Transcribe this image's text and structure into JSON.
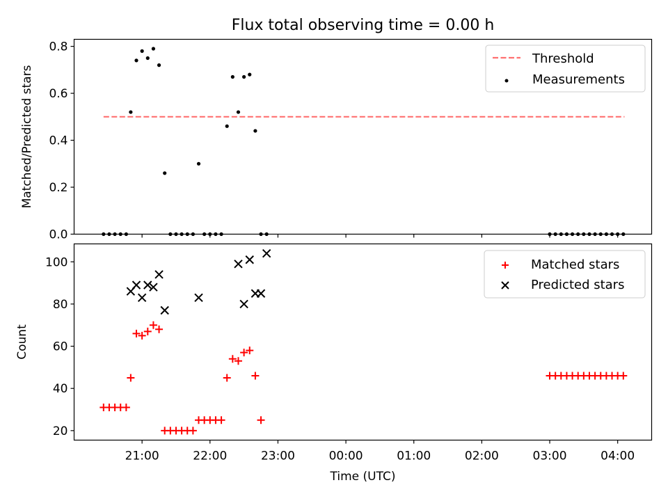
{
  "chart_data": [
    {
      "type": "scatter",
      "title": "Flux total observing time = 0.00 h",
      "xlabel": "",
      "ylabel": "Matched/Predicted stars",
      "ylim": [
        0,
        0.83
      ],
      "yticks": [
        0.0,
        0.2,
        0.4,
        0.6,
        0.8
      ],
      "yticklabels": [
        "0.0",
        "0.2",
        "0.4",
        "0.6",
        "0.8"
      ],
      "legend_position": "top-right",
      "threshold": {
        "name": "Threshold",
        "value": 0.5,
        "x_range": [
          "20:26",
          "04:06"
        ],
        "color": "#ff7070",
        "style": "dashed"
      },
      "series": [
        {
          "name": "Measurements",
          "marker": "dot",
          "color": "#000000",
          "x": [
            "20:26",
            "20:31",
            "20:36",
            "20:41",
            "20:46",
            "20:50",
            "20:55",
            "21:00",
            "21:05",
            "21:10",
            "21:15",
            "21:20",
            "21:25",
            "21:30",
            "21:35",
            "21:40",
            "21:45",
            "21:50",
            "21:55",
            "22:00",
            "22:05",
            "22:10",
            "22:15",
            "22:20",
            "22:25",
            "22:30",
            "22:35",
            "22:40",
            "22:45",
            "22:50",
            "03:00",
            "03:05",
            "03:10",
            "03:15",
            "03:20",
            "03:25",
            "03:30",
            "03:35",
            "03:40",
            "03:45",
            "03:50",
            "03:55",
            "04:00",
            "04:05"
          ],
          "y": [
            0,
            0,
            0,
            0,
            0,
            0.52,
            0.74,
            0.78,
            0.75,
            0.79,
            0.72,
            0.26,
            0,
            0,
            0,
            0,
            0,
            0.3,
            0,
            0,
            0,
            0,
            0.46,
            0.67,
            0.52,
            0.67,
            0.68,
            0.44,
            0,
            0,
            0,
            0,
            0,
            0,
            0,
            0,
            0,
            0,
            0,
            0,
            0,
            0,
            0,
            0
          ]
        }
      ]
    },
    {
      "type": "scatter",
      "title": "",
      "xlabel": "Time (UTC)",
      "ylabel": "Count",
      "ylim": [
        15.5,
        108.5
      ],
      "yticks": [
        20,
        40,
        60,
        80,
        100
      ],
      "yticklabels": [
        "20",
        "40",
        "60",
        "80",
        "100"
      ],
      "xlim": [
        "20:00",
        "04:30"
      ],
      "xticks": [
        "21:00",
        "22:00",
        "23:00",
        "00:00",
        "01:00",
        "02:00",
        "03:00",
        "04:00"
      ],
      "legend_position": "top-right",
      "series": [
        {
          "name": "Matched stars",
          "marker": "plus",
          "color": "#ff0000",
          "x": [
            "20:26",
            "20:31",
            "20:36",
            "20:41",
            "20:46",
            "20:50",
            "20:55",
            "21:00",
            "21:05",
            "21:10",
            "21:15",
            "21:20",
            "21:25",
            "21:30",
            "21:35",
            "21:40",
            "21:45",
            "21:50",
            "21:55",
            "22:00",
            "22:05",
            "22:10",
            "22:15",
            "22:20",
            "22:25",
            "22:30",
            "22:35",
            "22:40",
            "22:45",
            "03:00",
            "03:05",
            "03:10",
            "03:15",
            "03:20",
            "03:25",
            "03:30",
            "03:35",
            "03:40",
            "03:45",
            "03:50",
            "03:55",
            "04:00",
            "04:05"
          ],
          "y": [
            31,
            31,
            31,
            31,
            31,
            45,
            66,
            65,
            67,
            70,
            68,
            20,
            20,
            20,
            20,
            20,
            20,
            25,
            25,
            25,
            25,
            25,
            45,
            54,
            53,
            57,
            58,
            46,
            25,
            46,
            46,
            46,
            46,
            46,
            46,
            46,
            46,
            46,
            46,
            46,
            46,
            46,
            46
          ]
        },
        {
          "name": "Predicted stars",
          "marker": "x",
          "color": "#000000",
          "x": [
            "20:50",
            "20:55",
            "21:00",
            "21:05",
            "21:10",
            "21:15",
            "21:20",
            "21:50",
            "22:25",
            "22:30",
            "22:35",
            "22:40",
            "22:45",
            "22:50"
          ],
          "y": [
            86,
            89,
            83,
            89,
            88,
            94,
            77,
            83,
            99,
            80,
            101,
            85,
            85,
            104
          ]
        }
      ]
    }
  ]
}
